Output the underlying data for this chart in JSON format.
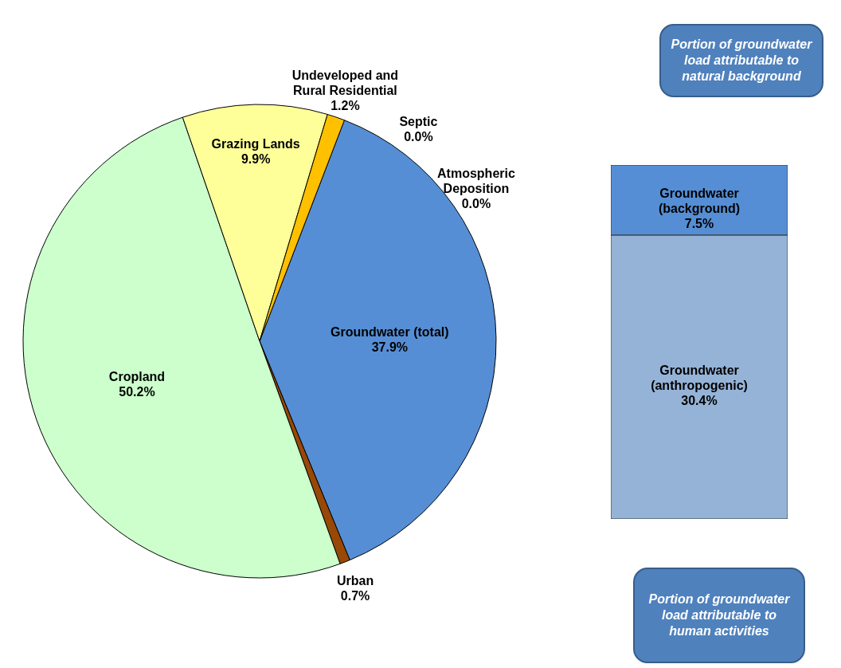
{
  "chart_data": [
    {
      "type": "pie",
      "categories": [
        "Groundwater (total)",
        "Urban",
        "Cropland",
        "Grazing Lands",
        "Undeveloped and Rural Residential",
        "Septic",
        "Atmospheric Deposition"
      ],
      "values": [
        37.9,
        0.7,
        50.2,
        9.9,
        1.2,
        0.0,
        0.0
      ],
      "value_labels": [
        "37.9%",
        "0.7%",
        "50.2%",
        "9.9%",
        "1.2%",
        "0.0%",
        "0.0%"
      ],
      "colors": [
        "#558ed5",
        "#984807",
        "#ccffcc",
        "#ffff99",
        "#ffc000",
        "#7f7f7f",
        "#c0504d"
      ]
    },
    {
      "type": "bar",
      "stacked": true,
      "categories": [
        null
      ],
      "series": [
        {
          "name": "Groundwater (anthropogenic)",
          "color": "#95b3d7",
          "values": [
            30.4
          ],
          "value_labels": [
            "30.4%"
          ]
        },
        {
          "name": "Groundwater (background)",
          "color": "#558ed5",
          "values": [
            7.5
          ],
          "value_labels": [
            "7.5%"
          ]
        }
      ],
      "annotations": [
        "Portion of groundwater load attributable to natural background",
        "Portion of groundwater load attributable to human activities"
      ]
    }
  ]
}
